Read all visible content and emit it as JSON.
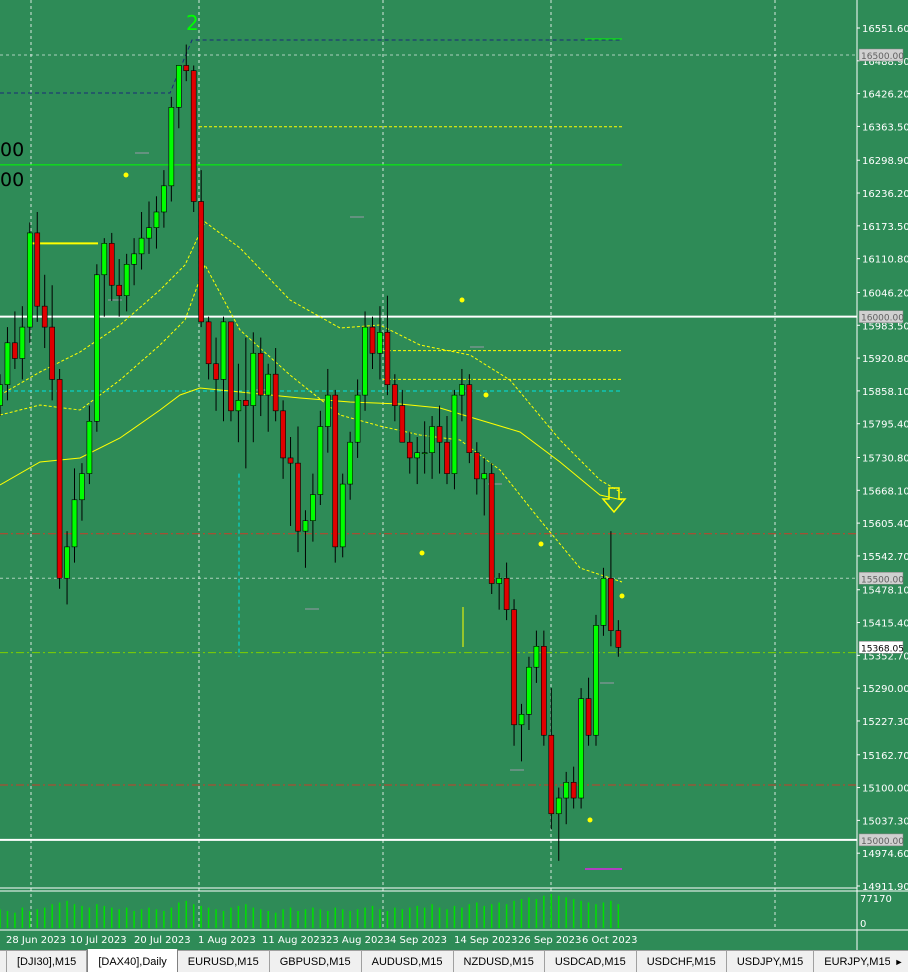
{
  "chart": {
    "symbol": "DAX40",
    "timeframe": "Daily",
    "wave_label": "2",
    "left_labels": [
      "00",
      "00"
    ],
    "colors": {
      "background": "#2e8b57",
      "bull": "#00ff00",
      "bear": "#e00000",
      "wick": "#000000",
      "ma": "#ffff00",
      "level_white": "#ffffff",
      "level_green": "#00ff00",
      "dashdot_red": "#c83c28",
      "cyan": "#00e0e0",
      "volume": "#00e000"
    },
    "arrow_icon": "down-arrow-icon"
  },
  "chart_data": {
    "type": "candlestick",
    "y_axis_labels": [
      "16551.60",
      "16488.90",
      "16426.20",
      "16363.50",
      "16298.90",
      "16236.20",
      "16173.50",
      "16110.80",
      "16046.20",
      "15983.50",
      "15920.80",
      "15858.10",
      "15795.40",
      "15730.80",
      "15668.10",
      "15605.40",
      "15542.70",
      "15478.10",
      "15415.40",
      "15352.70",
      "15290.00",
      "15227.30",
      "15162.70",
      "15100.00",
      "15037.30",
      "14974.60",
      "14911.90"
    ],
    "ylim": [
      14911.9,
      16551.6
    ],
    "price_tags": [
      "16500.00",
      "16000.00",
      "15500.00",
      "15368.05",
      "15000.00"
    ],
    "volume_axis_labels": [
      "77170",
      "0"
    ],
    "x_axis_labels": [
      "28 Jun 2023",
      "10 Jul 2023",
      "20 Jul 2023",
      "1 Aug 2023",
      "11 Aug 2023",
      "23 Aug 2023",
      "4 Sep 2023",
      "14 Sep 2023",
      "26 Sep 2023",
      "6 Oct 2023"
    ],
    "candles": [
      [
        15830,
        15890,
        15810,
        15870
      ],
      [
        15870,
        15980,
        15840,
        15950
      ],
      [
        15950,
        16010,
        15900,
        15920
      ],
      [
        15920,
        16020,
        15880,
        15980
      ],
      [
        15980,
        16180,
        15950,
        16160
      ],
      [
        16160,
        16200,
        15990,
        16020
      ],
      [
        16020,
        16080,
        15940,
        15980
      ],
      [
        15980,
        16060,
        15840,
        15880
      ],
      [
        15880,
        15900,
        15480,
        15500
      ],
      [
        15500,
        15590,
        15450,
        15560
      ],
      [
        15560,
        15710,
        15530,
        15650
      ],
      [
        15650,
        15720,
        15610,
        15700
      ],
      [
        15700,
        15830,
        15680,
        15800
      ],
      [
        15800,
        16100,
        15780,
        16080
      ],
      [
        16080,
        16150,
        16000,
        16140
      ],
      [
        16140,
        16160,
        16030,
        16060
      ],
      [
        16060,
        16110,
        16000,
        16040
      ],
      [
        16040,
        16120,
        16010,
        16100
      ],
      [
        16100,
        16150,
        16060,
        16120
      ],
      [
        16120,
        16200,
        16090,
        16150
      ],
      [
        16150,
        16220,
        16120,
        16170
      ],
      [
        16170,
        16230,
        16130,
        16200
      ],
      [
        16200,
        16280,
        16170,
        16250
      ],
      [
        16250,
        16420,
        16220,
        16400
      ],
      [
        16400,
        16480,
        16360,
        16480
      ],
      [
        16480,
        16520,
        16450,
        16470
      ],
      [
        16470,
        16480,
        16200,
        16220
      ],
      [
        16220,
        16280,
        15980,
        15990
      ],
      [
        15990,
        16000,
        15880,
        15910
      ],
      [
        15910,
        15960,
        15820,
        15880
      ],
      [
        15880,
        16000,
        15800,
        15990
      ],
      [
        15990,
        15990,
        15800,
        15820
      ],
      [
        15820,
        15910,
        15760,
        15840
      ],
      [
        15840,
        15960,
        15710,
        15830
      ],
      [
        15830,
        15970,
        15760,
        15930
      ],
      [
        15930,
        15960,
        15810,
        15850
      ],
      [
        15850,
        15910,
        15780,
        15890
      ],
      [
        15890,
        15940,
        15800,
        15820
      ],
      [
        15820,
        15840,
        15690,
        15730
      ],
      [
        15730,
        15770,
        15600,
        15720
      ],
      [
        15720,
        15790,
        15550,
        15590
      ],
      [
        15590,
        15630,
        15520,
        15610
      ],
      [
        15610,
        15700,
        15570,
        15660
      ],
      [
        15660,
        15820,
        15640,
        15790
      ],
      [
        15790,
        15900,
        15740,
        15850
      ],
      [
        15850,
        15860,
        15530,
        15560
      ],
      [
        15560,
        15700,
        15540,
        15680
      ],
      [
        15680,
        15780,
        15650,
        15760
      ],
      [
        15760,
        15880,
        15730,
        15850
      ],
      [
        15850,
        16010,
        15820,
        15980
      ],
      [
        15980,
        16000,
        15900,
        15930
      ],
      [
        15930,
        16020,
        15880,
        15970
      ],
      [
        15970,
        16040,
        15850,
        15870
      ],
      [
        15870,
        15890,
        15800,
        15830
      ],
      [
        15830,
        15860,
        15760,
        15760
      ],
      [
        15760,
        15780,
        15700,
        15730
      ],
      [
        15730,
        15770,
        15680,
        15740
      ],
      [
        15740,
        15800,
        15700,
        15740
      ],
      [
        15740,
        15810,
        15690,
        15790
      ],
      [
        15790,
        15830,
        15700,
        15760
      ],
      [
        15760,
        15810,
        15680,
        15700
      ],
      [
        15700,
        15860,
        15670,
        15850
      ],
      [
        15850,
        15900,
        15800,
        15870
      ],
      [
        15870,
        15890,
        15720,
        15740
      ],
      [
        15740,
        15760,
        15660,
        15690
      ],
      [
        15690,
        15730,
        15620,
        15700
      ],
      [
        15700,
        15720,
        15470,
        15490
      ],
      [
        15490,
        15510,
        15440,
        15500
      ],
      [
        15500,
        15530,
        15420,
        15440
      ],
      [
        15440,
        15460,
        15180,
        15220
      ],
      [
        15220,
        15260,
        15150,
        15240
      ],
      [
        15240,
        15350,
        15210,
        15330
      ],
      [
        15330,
        15400,
        15300,
        15370
      ],
      [
        15370,
        15400,
        15180,
        15200
      ],
      [
        15200,
        15290,
        15020,
        15050
      ],
      [
        15050,
        15100,
        14960,
        15080
      ],
      [
        15080,
        15130,
        15030,
        15110
      ],
      [
        15110,
        15140,
        15060,
        15080
      ],
      [
        15080,
        15290,
        15060,
        15270
      ],
      [
        15270,
        15310,
        15180,
        15200
      ],
      [
        15200,
        15430,
        15180,
        15410
      ],
      [
        15410,
        15520,
        15390,
        15500
      ],
      [
        15500,
        15590,
        15370,
        15400
      ],
      [
        15400,
        15420,
        15350,
        15368
      ]
    ],
    "volumes": [
      0.55,
      0.5,
      0.45,
      0.6,
      0.5,
      0.55,
      0.6,
      0.7,
      0.75,
      0.8,
      0.7,
      0.65,
      0.6,
      0.7,
      0.65,
      0.6,
      0.55,
      0.6,
      0.5,
      0.55,
      0.6,
      0.55,
      0.5,
      0.6,
      0.75,
      0.8,
      0.7,
      0.65,
      0.6,
      0.55,
      0.5,
      0.6,
      0.65,
      0.7,
      0.6,
      0.55,
      0.5,
      0.45,
      0.55,
      0.6,
      0.5,
      0.55,
      0.6,
      0.55,
      0.5,
      0.6,
      0.55,
      0.5,
      0.55,
      0.6,
      0.65,
      0.55,
      0.5,
      0.6,
      0.55,
      0.6,
      0.65,
      0.6,
      0.7,
      0.6,
      0.55,
      0.65,
      0.6,
      0.7,
      0.75,
      0.65,
      0.7,
      0.75,
      0.7,
      0.8,
      0.85,
      0.9,
      0.85,
      0.95,
      1.0,
      0.95,
      0.9,
      0.85,
      0.8,
      0.75,
      0.7,
      0.75,
      0.8,
      0.7
    ]
  },
  "tabs": [
    {
      "label": "[DJI30],M15",
      "active": false
    },
    {
      "label": "[DAX40],Daily",
      "active": true
    },
    {
      "label": "EURUSD,M15",
      "active": false
    },
    {
      "label": "GBPUSD,M15",
      "active": false
    },
    {
      "label": "AUDUSD,M15",
      "active": false
    },
    {
      "label": "NZDUSD,M15",
      "active": false
    },
    {
      "label": "USDCAD,M15",
      "active": false
    },
    {
      "label": "USDCHF,M15",
      "active": false
    },
    {
      "label": "USDJPY,M15",
      "active": false
    },
    {
      "label": "EURJPY,M15",
      "active": false
    }
  ],
  "tab_scroll_icon": "triangle-right-icon"
}
